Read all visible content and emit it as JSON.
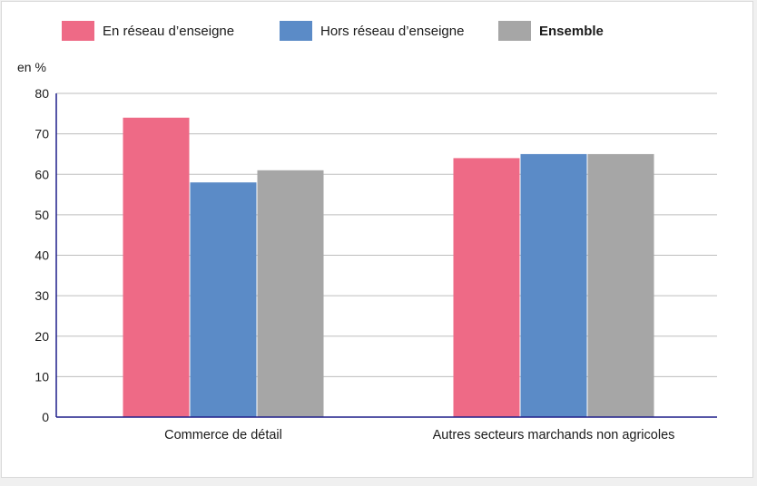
{
  "chart_data": {
    "type": "bar",
    "ylabel": "en %",
    "ylim": [
      0,
      80
    ],
    "yticks": [
      0,
      10,
      20,
      30,
      40,
      50,
      60,
      70,
      80
    ],
    "grid": true,
    "legend_position": "top",
    "categories": [
      "Commerce de détail",
      "Autres secteurs marchands non agricoles"
    ],
    "series": [
      {
        "name": "En réseau d’enseigne",
        "color": "#ee6a86",
        "values": [
          74,
          64
        ]
      },
      {
        "name": "Hors réseau d’enseigne",
        "color": "#5b8bc7",
        "values": [
          58,
          65
        ]
      },
      {
        "name": "Ensemble",
        "color": "#a6a6a6",
        "values": [
          61,
          65
        ]
      }
    ]
  }
}
